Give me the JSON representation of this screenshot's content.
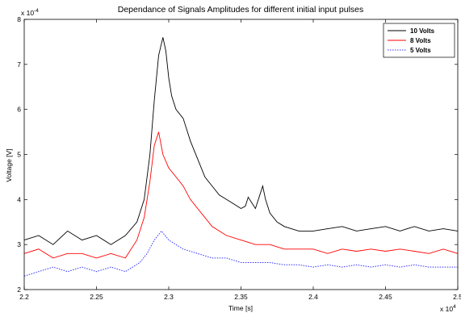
{
  "chart_data": {
    "type": "line",
    "title": "Dependance of Signals Amplitudes for different initial input pulses",
    "xlabel": "Time [s]",
    "ylabel": "Voltage [V]",
    "x_exponent": "x 10",
    "x_exponent_power": "4",
    "y_exponent": "x 10",
    "y_exponent_power": "-4",
    "xlim": [
      2.2,
      2.5
    ],
    "ylim": [
      2,
      8
    ],
    "x_ticks": [
      "2.2",
      "2.25",
      "2.3",
      "2.35",
      "2.4",
      "2.45",
      "2.5"
    ],
    "y_ticks": [
      "2",
      "3",
      "4",
      "5",
      "6",
      "7",
      "8"
    ],
    "grid": false,
    "legend_position": "top-right",
    "series": [
      {
        "name": "10 Volts",
        "color": "#000000",
        "style": "solid",
        "x": [
          2.2,
          2.21,
          2.22,
          2.23,
          2.24,
          2.25,
          2.26,
          2.27,
          2.278,
          2.283,
          2.287,
          2.29,
          2.293,
          2.296,
          2.298,
          2.3,
          2.302,
          2.305,
          2.31,
          2.315,
          2.32,
          2.325,
          2.33,
          2.335,
          2.34,
          2.345,
          2.35,
          2.353,
          2.355,
          2.358,
          2.36,
          2.363,
          2.365,
          2.367,
          2.37,
          2.375,
          2.38,
          2.39,
          2.4,
          2.41,
          2.42,
          2.43,
          2.44,
          2.45,
          2.46,
          2.47,
          2.48,
          2.49,
          2.5
        ],
        "y": [
          3.1,
          3.2,
          3.0,
          3.3,
          3.1,
          3.2,
          3.0,
          3.2,
          3.5,
          4.0,
          5.0,
          6.2,
          7.2,
          7.6,
          7.3,
          6.7,
          6.3,
          6.0,
          5.8,
          5.3,
          4.9,
          4.5,
          4.3,
          4.1,
          4.0,
          3.9,
          3.8,
          3.85,
          4.05,
          3.9,
          3.8,
          4.1,
          4.3,
          4.0,
          3.7,
          3.5,
          3.4,
          3.3,
          3.3,
          3.35,
          3.4,
          3.3,
          3.35,
          3.4,
          3.3,
          3.4,
          3.3,
          3.35,
          3.3
        ]
      },
      {
        "name": "8 Volts",
        "color": "#ff0000",
        "style": "solid",
        "x": [
          2.2,
          2.21,
          2.22,
          2.23,
          2.24,
          2.25,
          2.26,
          2.27,
          2.278,
          2.283,
          2.287,
          2.29,
          2.293,
          2.296,
          2.3,
          2.305,
          2.31,
          2.315,
          2.32,
          2.325,
          2.33,
          2.34,
          2.35,
          2.36,
          2.37,
          2.38,
          2.39,
          2.4,
          2.41,
          2.42,
          2.43,
          2.44,
          2.45,
          2.46,
          2.47,
          2.48,
          2.49,
          2.5
        ],
        "y": [
          2.8,
          2.9,
          2.7,
          2.8,
          2.8,
          2.7,
          2.8,
          2.7,
          3.1,
          3.6,
          4.4,
          5.2,
          5.5,
          5.0,
          4.7,
          4.5,
          4.3,
          4.0,
          3.8,
          3.6,
          3.4,
          3.2,
          3.1,
          3.0,
          3.0,
          2.9,
          2.9,
          2.9,
          2.8,
          2.9,
          2.85,
          2.9,
          2.85,
          2.9,
          2.85,
          2.8,
          2.9,
          2.8
        ]
      },
      {
        "name": "5 Volts",
        "color": "#3333ff",
        "style": "dotted",
        "x": [
          2.2,
          2.21,
          2.22,
          2.23,
          2.24,
          2.25,
          2.26,
          2.27,
          2.28,
          2.285,
          2.29,
          2.295,
          2.3,
          2.31,
          2.32,
          2.33,
          2.34,
          2.35,
          2.36,
          2.37,
          2.38,
          2.39,
          2.4,
          2.41,
          2.42,
          2.43,
          2.44,
          2.45,
          2.46,
          2.47,
          2.48,
          2.49,
          2.5
        ],
        "y": [
          2.3,
          2.4,
          2.5,
          2.4,
          2.5,
          2.4,
          2.5,
          2.4,
          2.6,
          2.8,
          3.1,
          3.3,
          3.1,
          2.9,
          2.8,
          2.7,
          2.7,
          2.6,
          2.6,
          2.6,
          2.55,
          2.55,
          2.5,
          2.55,
          2.5,
          2.55,
          2.5,
          2.55,
          2.5,
          2.55,
          2.5,
          2.5,
          2.5
        ]
      }
    ]
  }
}
